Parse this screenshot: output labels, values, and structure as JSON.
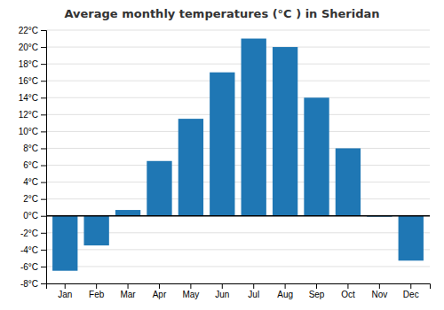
{
  "chart_data": {
    "type": "bar",
    "title": "Average monthly temperatures (°C ) in Sheridan",
    "categories": [
      "Jan",
      "Feb",
      "Mar",
      "Apr",
      "May",
      "Jun",
      "Jul",
      "Aug",
      "Sep",
      "Oct",
      "Nov",
      "Dec"
    ],
    "values": [
      -6.5,
      -3.5,
      0.7,
      6.5,
      11.5,
      17.0,
      21.0,
      20.0,
      14.0,
      8.0,
      -0.1,
      -5.3
    ],
    "ylim": [
      -8,
      22
    ],
    "yticks": [
      {
        "value": -8,
        "label": "-8°C"
      },
      {
        "value": -6,
        "label": "-6°C"
      },
      {
        "value": -4,
        "label": "-4°C"
      },
      {
        "value": -2,
        "label": "-2°C"
      },
      {
        "value": 0,
        "label": "0°C"
      },
      {
        "value": 2,
        "label": "2°C"
      },
      {
        "value": 4,
        "label": "4°C"
      },
      {
        "value": 6,
        "label": "6°C"
      },
      {
        "value": 8,
        "label": "8°C"
      },
      {
        "value": 10,
        "label": "10°C"
      },
      {
        "value": 12,
        "label": "12°C"
      },
      {
        "value": 14,
        "label": "14°C"
      },
      {
        "value": 16,
        "label": "16°C"
      },
      {
        "value": 18,
        "label": "18°C"
      },
      {
        "value": 20,
        "label": "20°C"
      },
      {
        "value": 22,
        "label": "22°C"
      }
    ],
    "grid": true
  }
}
